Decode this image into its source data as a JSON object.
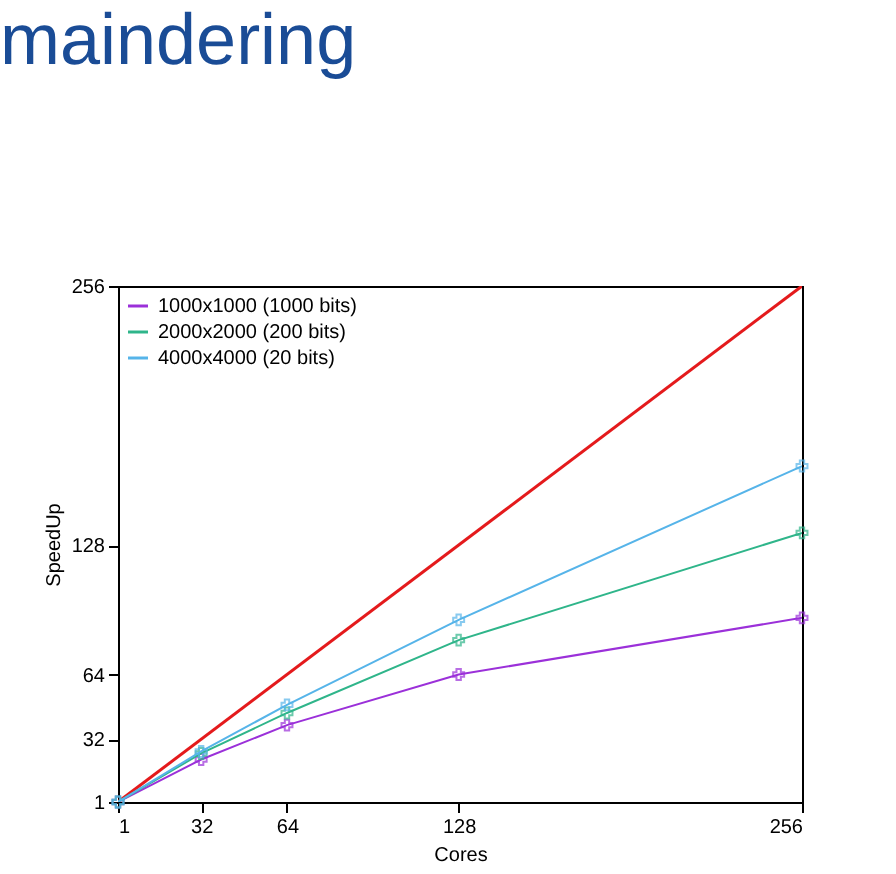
{
  "chart_data": {
    "type": "line",
    "title": "maindering",
    "xlabel": "Cores",
    "ylabel": "SpeedUp",
    "x": [
      1,
      32,
      64,
      128,
      256
    ],
    "series": [
      {
        "color": "#e41a1c",
        "x": [
          1,
          256
        ],
        "values": [
          1,
          256
        ],
        "marker": "none"
      },
      {
        "name": "1000x1000 (1000 bits)",
        "color": "#9b30d9",
        "values": [
          1,
          22,
          39,
          64,
          92
        ],
        "marker": "cross"
      },
      {
        "name": "2000x2000 (200 bits)",
        "color": "#2fb58a",
        "values": [
          1,
          25,
          45,
          81,
          134
        ],
        "marker": "cross"
      },
      {
        "name": "4000x4000 (20 bits)",
        "color": "#56b4e9",
        "values": [
          1,
          26,
          49,
          91,
          167
        ],
        "marker": "cross"
      }
    ],
    "xlim": [
      1,
      256
    ],
    "xticks": [
      1,
      32,
      64,
      128,
      256
    ],
    "ylim": [
      1,
      256
    ],
    "yticks": [
      1,
      32,
      64,
      128,
      256
    ],
    "legend": "top left"
  }
}
